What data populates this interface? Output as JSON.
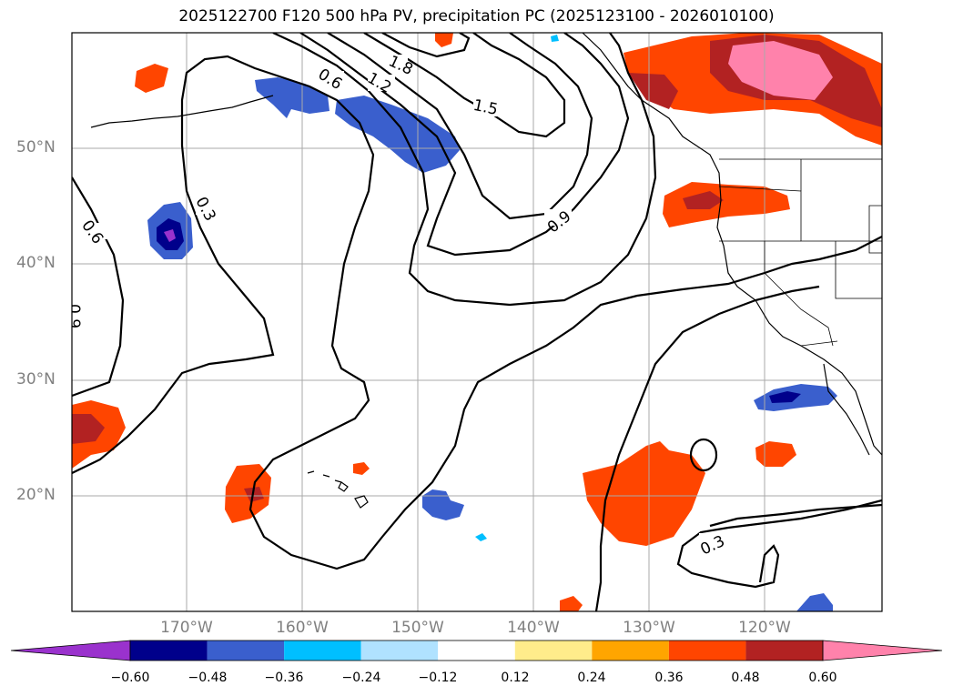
{
  "title": "2025122700 F120 500 hPa PV, precipitation PC (2025123100 - 2026010100)",
  "latitude_labels": [
    "50°N",
    "40°N",
    "30°N",
    "20°N"
  ],
  "longitude_labels": [
    "170°W",
    "160°W",
    "150°W",
    "140°W",
    "130°W",
    "120°W"
  ],
  "contour_labels": [
    "1.8",
    "1.2",
    "0.6",
    "1.5",
    "0.9",
    "0.3",
    "0.6",
    "0.9",
    "0.3"
  ],
  "colorbar": {
    "ticks": [
      "−0.60",
      "−0.48",
      "−0.36",
      "−0.24",
      "−0.12",
      "0.12",
      "0.24",
      "0.36",
      "0.48",
      "0.60"
    ],
    "colors": [
      "#9a32cd",
      "#00008b",
      "#3a5fcd",
      "#00bfff",
      "#b0e2ff",
      "#ffffff",
      "#ffec8b",
      "#ffa500",
      "#ff4500",
      "#b22222",
      "#ff82ab"
    ]
  }
}
